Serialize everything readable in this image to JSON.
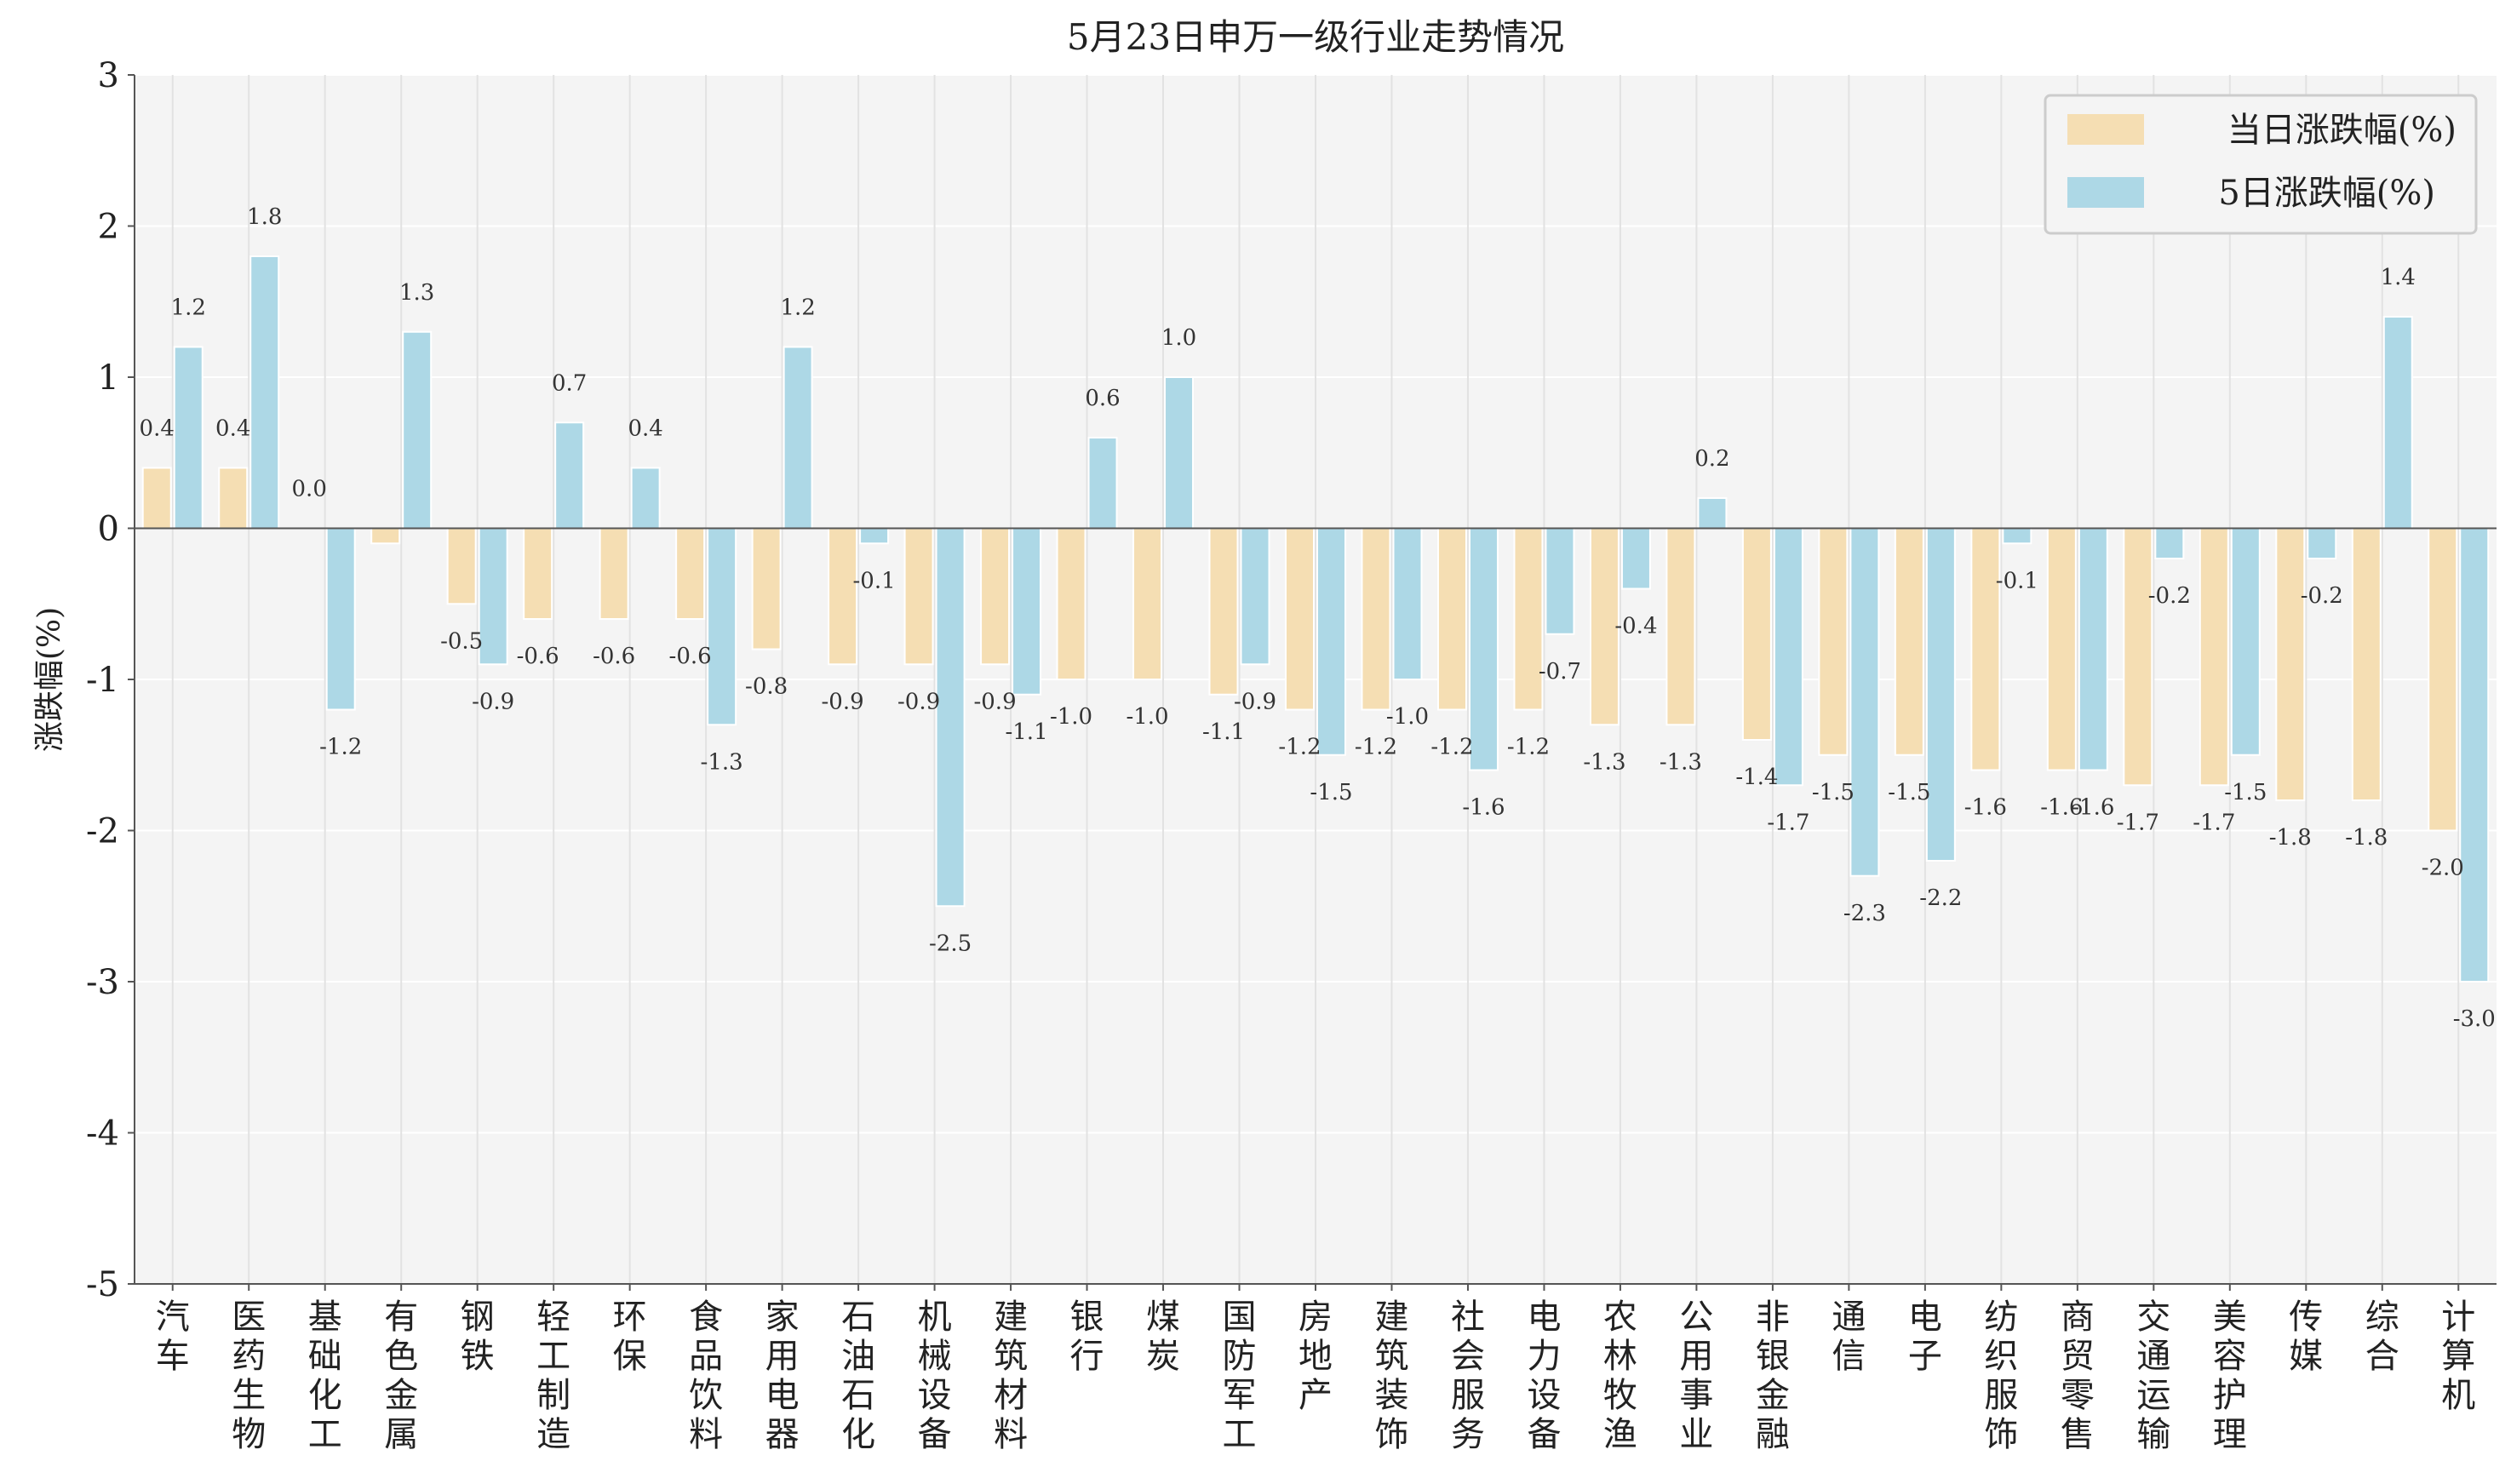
{
  "chart_data": {
    "type": "bar",
    "title": "5月23日申万一级行业走势情况",
    "xlabel": "",
    "ylabel": "涨跌幅(%)",
    "ylim": [
      -5,
      3
    ],
    "yticks": [
      "3",
      "2",
      "1",
      "0",
      "-1",
      "-2",
      "-3",
      "-4",
      "-5"
    ],
    "grid": true,
    "legend_position": "top-right",
    "categories": [
      "汽车",
      "医药生物",
      "基础化工",
      "有色金属",
      "钢铁",
      "轻工制造",
      "环保",
      "食品饮料",
      "家用电器",
      "石油石化",
      "机械设备",
      "建筑材料",
      "银行",
      "煤炭",
      "国防军工",
      "房地产",
      "建筑装饰",
      "社会服务",
      "电力设备",
      "农林牧渔",
      "公用事业",
      "非银金融",
      "通信",
      "电子",
      "纺织服饰",
      "商贸零售",
      "交通运输",
      "美容护理",
      "传媒",
      "综合",
      "计算机"
    ],
    "series": [
      {
        "name": "当日涨跌幅(%)",
        "color": "#f5deb3",
        "values": [
          0.4,
          0.4,
          0.0,
          -0.1,
          -0.5,
          -0.6,
          -0.6,
          -0.6,
          -0.8,
          -0.9,
          -0.9,
          -0.9,
          -1.0,
          -1.0,
          -1.1,
          -1.2,
          -1.2,
          -1.2,
          -1.2,
          -1.3,
          -1.3,
          -1.4,
          -1.5,
          -1.5,
          -1.6,
          -1.6,
          -1.7,
          -1.7,
          -1.8,
          -1.8,
          -2.0
        ],
        "labels": [
          "0.4",
          "0.4",
          "0.0",
          "",
          "-0.5",
          "-0.6",
          "-0.6",
          "-0.6",
          "-0.8",
          "-0.9",
          "-0.9",
          "-0.9",
          "-1.0",
          "-1.0",
          "-1.1",
          "-1.2",
          "-1.2",
          "-1.2",
          "-1.2",
          "-1.3",
          "-1.3",
          "-1.4",
          "-1.5",
          "-1.5",
          "-1.6",
          "-1.6",
          "-1.7",
          "-1.7",
          "-1.8",
          "-1.8",
          "-2.0"
        ]
      },
      {
        "name": "5日涨跌幅(%)",
        "color": "#add8e6",
        "values": [
          1.2,
          1.8,
          -1.2,
          1.3,
          -0.9,
          0.7,
          0.4,
          -1.3,
          1.2,
          -0.1,
          -2.5,
          -1.1,
          0.6,
          1.0,
          -0.9,
          -1.5,
          -1.0,
          -1.6,
          -0.7,
          -0.4,
          0.2,
          -1.7,
          -2.3,
          -2.2,
          -0.1,
          -1.6,
          -0.2,
          -1.5,
          -0.2,
          1.4,
          -3.0
        ],
        "labels": [
          "1.2",
          "1.8",
          "-1.2",
          "1.3",
          "-0.9",
          "0.7",
          "0.4",
          "-1.3",
          "1.2",
          "-0.1",
          "-2.5",
          "-1.1",
          "0.6",
          "1.0",
          "-0.9",
          "-1.5",
          "-1.0",
          "-1.6",
          "-0.7",
          "-0.4",
          "0.2",
          "-1.7",
          "-2.3",
          "-2.2",
          "-0.1",
          "-1.6",
          "-0.2",
          "-1.5",
          "-0.2",
          "1.4",
          "-3.0"
        ]
      }
    ]
  }
}
